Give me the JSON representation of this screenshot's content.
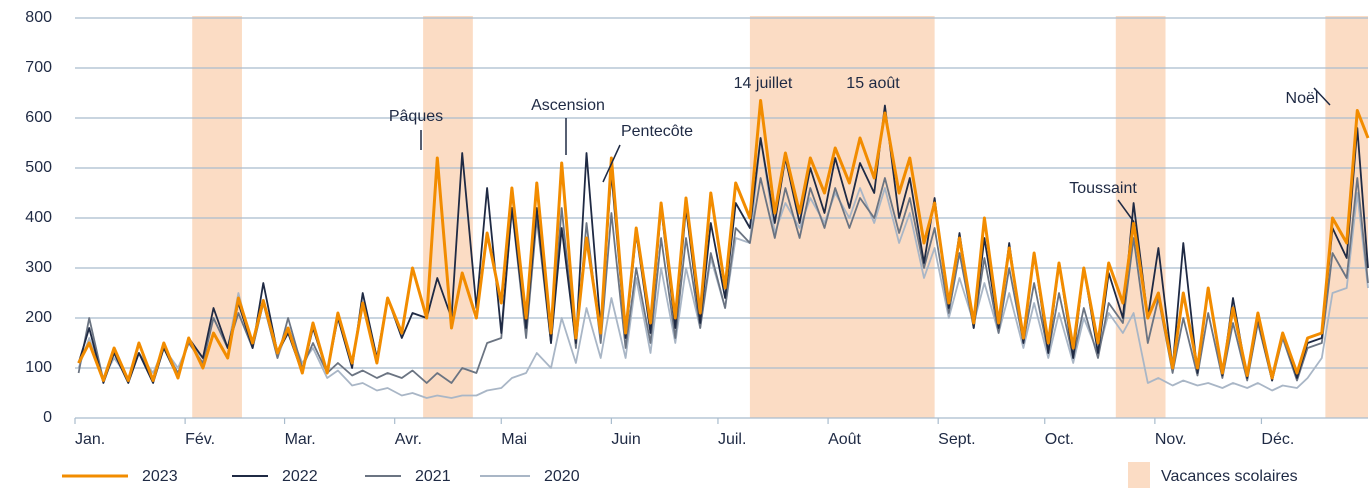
{
  "chart_data": {
    "type": "line",
    "x": [
      2,
      5,
      9,
      12,
      16,
      19,
      23,
      26,
      30,
      33,
      37,
      40,
      44,
      47,
      51,
      54,
      58,
      61,
      65,
      68,
      72,
      75,
      79,
      82,
      86,
      89,
      93,
      96,
      100,
      103,
      107,
      110,
      114,
      117,
      121,
      124,
      128,
      131,
      135,
      138,
      142,
      145,
      149,
      152,
      156,
      159,
      163,
      166,
      170,
      173,
      177,
      180,
      184,
      187,
      191,
      194,
      198,
      201,
      205,
      208,
      212,
      215,
      219,
      222,
      226,
      229,
      233,
      236,
      240,
      243,
      247,
      250,
      254,
      257,
      261,
      264,
      268,
      271,
      275,
      278,
      282,
      285,
      289,
      292,
      296,
      299,
      303,
      306,
      310,
      313,
      317,
      320,
      324,
      327,
      331,
      334,
      338,
      341,
      345,
      348,
      352,
      355,
      359,
      362,
      365
    ],
    "xlim": [
      1,
      365
    ],
    "xticks": [
      {
        "value": 1,
        "label": "Jan."
      },
      {
        "value": 32,
        "label": "Fév."
      },
      {
        "value": 60,
        "label": "Mar."
      },
      {
        "value": 91,
        "label": "Avr."
      },
      {
        "value": 121,
        "label": "Mai"
      },
      {
        "value": 152,
        "label": "Juin"
      },
      {
        "value": 182,
        "label": "Juil."
      },
      {
        "value": 213,
        "label": "Août"
      },
      {
        "value": 244,
        "label": "Sept."
      },
      {
        "value": 274,
        "label": "Oct."
      },
      {
        "value": 305,
        "label": "Nov."
      },
      {
        "value": 335,
        "label": "Déc."
      }
    ],
    "ylim": [
      0,
      800
    ],
    "yticks": [
      0,
      100,
      200,
      300,
      400,
      500,
      600,
      700,
      800
    ],
    "grid": true,
    "shaded_periods": {
      "name": "Vacances scolaires",
      "color": "#fbdcc4",
      "ranges": [
        [
          34,
          48
        ],
        [
          99,
          113
        ],
        [
          191,
          243
        ],
        [
          294,
          308
        ],
        [
          353,
          365
        ]
      ]
    },
    "annotations": [
      "Pâques",
      "Ascension",
      "Pentecôte",
      "14 juillet",
      "15 août",
      "Toussaint",
      "Noël"
    ],
    "series": [
      {
        "name": "2020",
        "color": "#a9b6c6",
        "values": [
          100,
          160,
          80,
          120,
          80,
          130,
          90,
          140,
          100,
          150,
          120,
          200,
          140,
          250,
          140,
          230,
          120,
          180,
          110,
          140,
          80,
          95,
          65,
          70,
          55,
          60,
          45,
          50,
          40,
          45,
          40,
          45,
          45,
          55,
          60,
          80,
          90,
          130,
          100,
          200,
          110,
          220,
          120,
          240,
          120,
          280,
          130,
          300,
          150,
          300,
          180,
          320,
          220,
          360,
          350,
          560,
          370,
          430,
          380,
          440,
          390,
          450,
          400,
          460,
          390,
          460,
          350,
          410,
          280,
          340,
          200,
          280,
          190,
          270,
          170,
          250,
          140,
          230,
          120,
          210,
          110,
          200,
          130,
          210,
          170,
          210,
          70,
          80,
          65,
          75,
          65,
          70,
          60,
          70,
          60,
          70,
          55,
          65,
          60,
          80,
          120,
          250,
          260,
          450,
          260
        ]
      },
      {
        "name": "2021",
        "color": "#6b7482",
        "values": [
          90,
          200,
          75,
          130,
          75,
          130,
          80,
          140,
          90,
          150,
          110,
          200,
          140,
          210,
          140,
          230,
          120,
          200,
          100,
          150,
          90,
          110,
          85,
          95,
          80,
          90,
          80,
          95,
          70,
          90,
          70,
          100,
          90,
          150,
          160,
          420,
          160,
          400,
          150,
          420,
          140,
          390,
          150,
          410,
          140,
          300,
          150,
          360,
          160,
          360,
          180,
          330,
          220,
          380,
          350,
          480,
          360,
          460,
          360,
          460,
          380,
          460,
          380,
          440,
          400,
          480,
          370,
          440,
          300,
          380,
          210,
          330,
          180,
          320,
          170,
          300,
          150,
          270,
          130,
          250,
          120,
          220,
          120,
          230,
          190,
          360,
          150,
          240,
          90,
          200,
          85,
          210,
          80,
          190,
          75,
          190,
          75,
          160,
          75,
          140,
          150,
          330,
          280,
          480,
          270
        ]
      },
      {
        "name": "2022",
        "color": "#1f2a44",
        "values": [
          110,
          180,
          70,
          130,
          70,
          130,
          70,
          140,
          80,
          160,
          120,
          220,
          140,
          230,
          140,
          270,
          130,
          170,
          90,
          180,
          90,
          200,
          100,
          250,
          120,
          240,
          160,
          210,
          200,
          280,
          200,
          530,
          220,
          460,
          170,
          420,
          180,
          420,
          150,
          380,
          150,
          530,
          180,
          490,
          160,
          370,
          170,
          420,
          180,
          420,
          190,
          390,
          240,
          430,
          380,
          560,
          390,
          520,
          390,
          500,
          410,
          520,
          420,
          510,
          450,
          625,
          400,
          480,
          310,
          440,
          220,
          370,
          180,
          360,
          180,
          350,
          150,
          330,
          130,
          310,
          120,
          300,
          130,
          290,
          200,
          430,
          200,
          340,
          100,
          350,
          90,
          260,
          85,
          240,
          80,
          200,
          75,
          170,
          80,
          150,
          160,
          380,
          320,
          580,
          300
        ]
      },
      {
        "name": "2023",
        "color": "#f28c00",
        "values": [
          110,
          150,
          75,
          140,
          75,
          150,
          75,
          150,
          80,
          160,
          100,
          170,
          120,
          240,
          150,
          235,
          130,
          180,
          90,
          190,
          90,
          210,
          110,
          230,
          110,
          240,
          170,
          300,
          200,
          520,
          180,
          290,
          200,
          370,
          230,
          460,
          200,
          470,
          170,
          510,
          160,
          360,
          170,
          520,
          170,
          380,
          190,
          430,
          200,
          440,
          210,
          450,
          260,
          470,
          400,
          635,
          410,
          530,
          410,
          520,
          450,
          540,
          470,
          560,
          480,
          610,
          450,
          520,
          350,
          430,
          230,
          360,
          190,
          400,
          190,
          340,
          160,
          330,
          150,
          310,
          140,
          300,
          150,
          310,
          230,
          390,
          200,
          250,
          100,
          250,
          100,
          260,
          90,
          220,
          85,
          210,
          80,
          170,
          90,
          160,
          170,
          400,
          350,
          615,
          560
        ]
      }
    ]
  }
}
